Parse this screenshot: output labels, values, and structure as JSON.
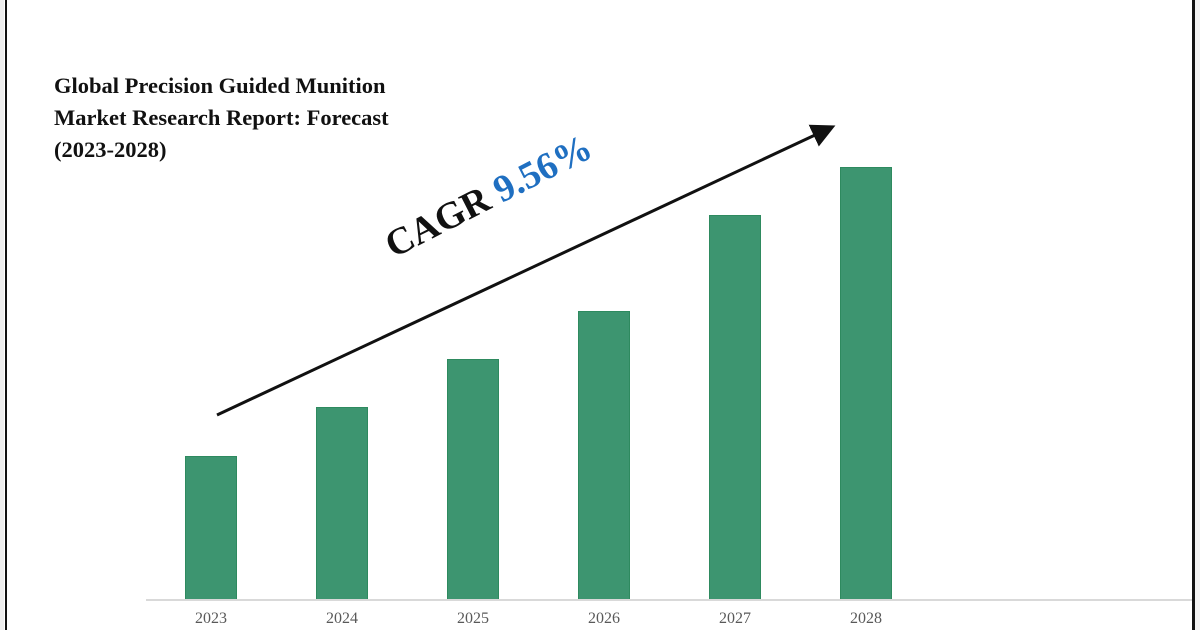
{
  "title": "Global Precision Guided Munition Market Research Report: Forecast (2023-2028)",
  "title_lines": [
    "Global Precision Guided Munition",
    "Market Research Report: Forecast",
    "(2023-2028)"
  ],
  "annotation": {
    "label": "CAGR",
    "value": "9.56%",
    "label_color": "#111111",
    "value_color": "#1f6fc1"
  },
  "colors": {
    "bar": "#3d9570",
    "axis_label": "#595959",
    "baseline": "#d9d9d9"
  },
  "chart_data": {
    "type": "bar",
    "title": "Global Precision Guided Munition Market Research Report: Forecast (2023-2028)",
    "categories": [
      "2023",
      "2024",
      "2025",
      "2026",
      "2027",
      "2028"
    ],
    "values": [
      144,
      193,
      241,
      289,
      385,
      433
    ],
    "value_units": "relative bar height (px above baseline; no y-axis shown)",
    "xlabel": "",
    "ylabel": "",
    "grid": false,
    "legend": null,
    "annotations": [
      {
        "type": "arrow",
        "text": "CAGR 9.56%",
        "direction": "upward trend from 2023 to 2028"
      }
    ]
  }
}
